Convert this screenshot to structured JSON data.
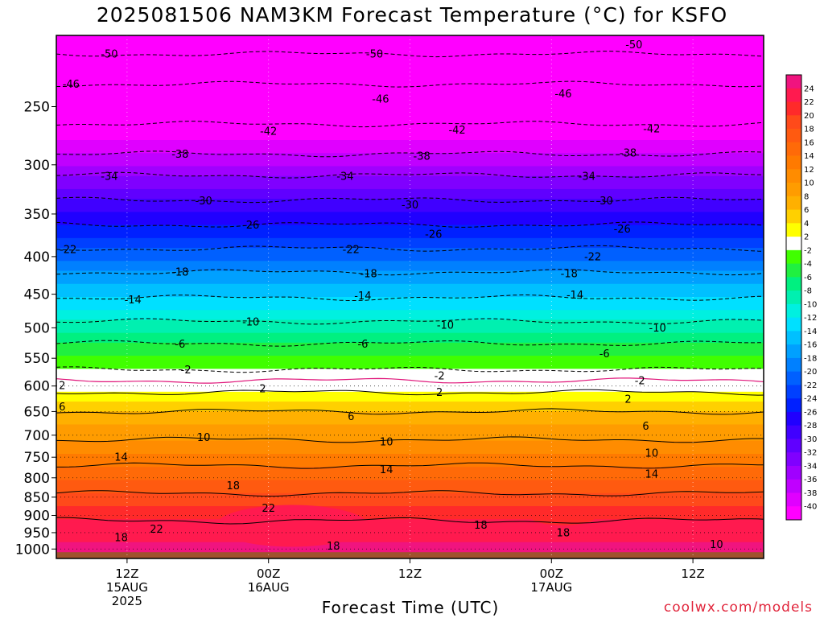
{
  "chart_data": {
    "type": "heatmap",
    "title": "2025081506 NAM3KM Forecast Temperature (°C) for KSFO",
    "xlabel": "Forecast Time (UTC)",
    "ylabel": "",
    "credit": "coolwx.com/models",
    "y_scale": "log",
    "y_inverted": true,
    "ylim": [
      1030,
      200
    ],
    "y_ticks": [
      250,
      300,
      350,
      400,
      450,
      500,
      550,
      600,
      650,
      700,
      750,
      800,
      850,
      900,
      950,
      1000
    ],
    "xlim": [
      "2025-08-15T06:00",
      "2025-08-17T18:00"
    ],
    "x_ticks": [
      {
        "time": "2025-08-15T12:00",
        "lines": [
          "12Z",
          "15AUG",
          "2025"
        ]
      },
      {
        "time": "2025-08-16T00:00",
        "lines": [
          "00Z",
          "16AUG"
        ]
      },
      {
        "time": "2025-08-16T12:00",
        "lines": [
          "12Z"
        ]
      },
      {
        "time": "2025-08-17T00:00",
        "lines": [
          "00Z",
          "17AUG"
        ]
      },
      {
        "time": "2025-08-17T12:00",
        "lines": [
          "12Z"
        ]
      }
    ],
    "colorbar": {
      "levels": [
        24,
        22,
        20,
        18,
        16,
        14,
        12,
        10,
        8,
        6,
        4,
        2,
        -2,
        -4,
        -6,
        -8,
        -10,
        -12,
        -14,
        -16,
        -18,
        -20,
        -22,
        -24,
        -26,
        -28,
        -30,
        -32,
        -34,
        -36,
        -38,
        -40
      ],
      "colors": [
        "#f0147f",
        "#ff1a4f",
        "#ff2a2a",
        "#ff4a1a",
        "#ff5a10",
        "#ff6a08",
        "#ff7a00",
        "#ff8c00",
        "#ff9c00",
        "#ffb000",
        "#ffd000",
        "#ffff00",
        "#ffffff",
        "#40ff00",
        "#20f040",
        "#00f080",
        "#00f0b0",
        "#00f0e0",
        "#00e0ff",
        "#00c0ff",
        "#00a0ff",
        "#0080ff",
        "#0060ff",
        "#0040ff",
        "#0020ff",
        "#2000ff",
        "#4000ff",
        "#6000ff",
        "#8000ff",
        "#a000ff",
        "#c000ff",
        "#e000ff",
        "#ff00ff"
      ]
    },
    "terrain_color": "#a0522d",
    "isotherms": [
      {
        "value": -50,
        "pressure": 212
      },
      {
        "value": -46,
        "pressure": 233
      },
      {
        "value": -42,
        "pressure": 264
      },
      {
        "value": -38,
        "pressure": 290
      },
      {
        "value": -34,
        "pressure": 310
      },
      {
        "value": -30,
        "pressure": 335
      },
      {
        "value": -26,
        "pressure": 362
      },
      {
        "value": -22,
        "pressure": 390
      },
      {
        "value": -18,
        "pressure": 420
      },
      {
        "value": -14,
        "pressure": 455
      },
      {
        "value": -10,
        "pressure": 490
      },
      {
        "value": -6,
        "pressure": 525
      },
      {
        "value": -2,
        "pressure": 570
      },
      {
        "value": 0,
        "pressure": 590
      },
      {
        "value": 2,
        "pressure": 612
      },
      {
        "value": 6,
        "pressure": 650
      },
      {
        "value": 10,
        "pressure": 710
      },
      {
        "value": 14,
        "pressure": 770
      },
      {
        "value": 18,
        "pressure": 840
      },
      {
        "value": 22,
        "pressure": 915
      }
    ],
    "contour_labels": [
      {
        "text": "-50",
        "time": "2025-08-15T10:30",
        "p": 212
      },
      {
        "text": "-50",
        "time": "2025-08-16T09:00",
        "p": 212
      },
      {
        "text": "-50",
        "time": "2025-08-17T07:00",
        "p": 206
      },
      {
        "text": "-46",
        "time": "2025-08-15T07:15",
        "p": 233
      },
      {
        "text": "-46",
        "time": "2025-08-16T09:30",
        "p": 244
      },
      {
        "text": "-46",
        "time": "2025-08-17T01:00",
        "p": 240
      },
      {
        "text": "-42",
        "time": "2025-08-16T00:00",
        "p": 270
      },
      {
        "text": "-42",
        "time": "2025-08-16T16:00",
        "p": 269
      },
      {
        "text": "-42",
        "time": "2025-08-17T08:30",
        "p": 268
      },
      {
        "text": "-38",
        "time": "2025-08-15T16:30",
        "p": 290
      },
      {
        "text": "-38",
        "time": "2025-08-16T13:00",
        "p": 292
      },
      {
        "text": "-38",
        "time": "2025-08-17T06:30",
        "p": 289
      },
      {
        "text": "-34",
        "time": "2025-08-15T10:30",
        "p": 311
      },
      {
        "text": "-34",
        "time": "2025-08-16T06:30",
        "p": 311
      },
      {
        "text": "-34",
        "time": "2025-08-17T03:00",
        "p": 311
      },
      {
        "text": "-30",
        "time": "2025-08-15T18:30",
        "p": 336
      },
      {
        "text": "-30",
        "time": "2025-08-16T12:00",
        "p": 340
      },
      {
        "text": "-30",
        "time": "2025-08-17T04:30",
        "p": 336
      },
      {
        "text": "-26",
        "time": "2025-08-15T22:30",
        "p": 362
      },
      {
        "text": "-26",
        "time": "2025-08-16T14:00",
        "p": 373
      },
      {
        "text": "-26",
        "time": "2025-08-17T06:00",
        "p": 367
      },
      {
        "text": "-22",
        "time": "2025-08-15T07:00",
        "p": 391
      },
      {
        "text": "-22",
        "time": "2025-08-16T07:00",
        "p": 391
      },
      {
        "text": "-22",
        "time": "2025-08-17T03:30",
        "p": 400
      },
      {
        "text": "-18",
        "time": "2025-08-15T16:30",
        "p": 420
      },
      {
        "text": "-18",
        "time": "2025-08-16T08:30",
        "p": 422
      },
      {
        "text": "-18",
        "time": "2025-08-17T01:30",
        "p": 422
      },
      {
        "text": "-14",
        "time": "2025-08-15T12:30",
        "p": 458
      },
      {
        "text": "-14",
        "time": "2025-08-16T08:00",
        "p": 452
      },
      {
        "text": "-14",
        "time": "2025-08-17T02:00",
        "p": 451
      },
      {
        "text": "-10",
        "time": "2025-08-15T22:30",
        "p": 491
      },
      {
        "text": "-10",
        "time": "2025-08-16T15:00",
        "p": 496
      },
      {
        "text": "-10",
        "time": "2025-08-17T09:00",
        "p": 500
      },
      {
        "text": "-6",
        "time": "2025-08-15T16:30",
        "p": 526
      },
      {
        "text": "-6",
        "time": "2025-08-16T08:00",
        "p": 526
      },
      {
        "text": "-6",
        "time": "2025-08-17T04:30",
        "p": 542
      },
      {
        "text": "-2",
        "time": "2025-08-15T17:00",
        "p": 570
      },
      {
        "text": "-2",
        "time": "2025-08-16T14:30",
        "p": 581
      },
      {
        "text": "-2",
        "time": "2025-08-17T07:30",
        "p": 590
      },
      {
        "text": "2",
        "time": "2025-08-15T06:30",
        "p": 599
      },
      {
        "text": "2",
        "time": "2025-08-15T23:30",
        "p": 605
      },
      {
        "text": "2",
        "time": "2025-08-16T14:30",
        "p": 612
      },
      {
        "text": "2",
        "time": "2025-08-17T06:30",
        "p": 625
      },
      {
        "text": "6",
        "time": "2025-08-15T06:30",
        "p": 640
      },
      {
        "text": "6",
        "time": "2025-08-16T07:00",
        "p": 660
      },
      {
        "text": "6",
        "time": "2025-08-17T08:00",
        "p": 680
      },
      {
        "text": "10",
        "time": "2025-08-15T18:30",
        "p": 705
      },
      {
        "text": "10",
        "time": "2025-08-16T10:00",
        "p": 715
      },
      {
        "text": "10",
        "time": "2025-08-17T08:30",
        "p": 740
      },
      {
        "text": "14",
        "time": "2025-08-15T11:30",
        "p": 750
      },
      {
        "text": "14",
        "time": "2025-08-16T10:00",
        "p": 780
      },
      {
        "text": "14",
        "time": "2025-08-17T08:30",
        "p": 790
      },
      {
        "text": "18",
        "time": "2025-08-15T21:00",
        "p": 820
      },
      {
        "text": "22",
        "time": "2025-08-16T00:00",
        "p": 880
      },
      {
        "text": "22",
        "time": "2025-08-15T14:30",
        "p": 940
      },
      {
        "text": "18",
        "time": "2025-08-15T11:30",
        "p": 965
      },
      {
        "text": "18",
        "time": "2025-08-16T05:30",
        "p": 990
      },
      {
        "text": "18",
        "time": "2025-08-16T18:00",
        "p": 928
      },
      {
        "text": "18",
        "time": "2025-08-17T01:00",
        "p": 950
      },
      {
        "text": "10",
        "time": "2025-08-17T14:00",
        "p": 985
      }
    ]
  }
}
